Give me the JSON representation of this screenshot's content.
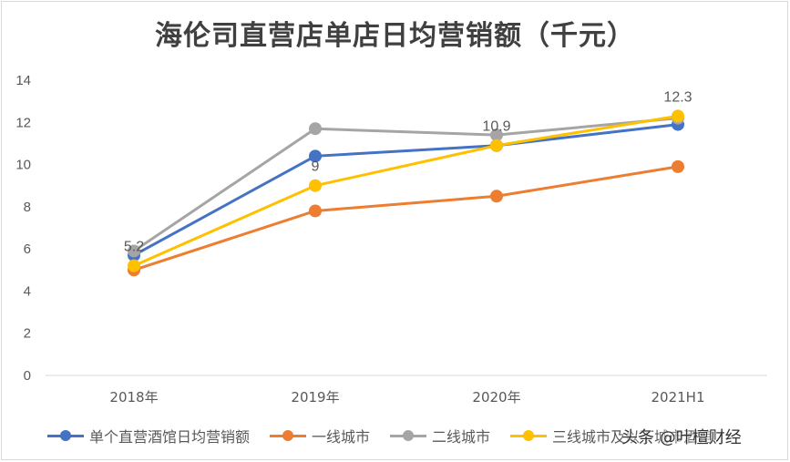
{
  "chart_data": {
    "type": "line",
    "title": "海伦司直营店单店日均营销额（千元）",
    "categories": [
      "2018年",
      "2019年",
      "2020年",
      "2021H1"
    ],
    "y_ticks": [
      "0",
      "2",
      "4",
      "6",
      "8",
      "10",
      "12",
      "14"
    ],
    "ylim": [
      0,
      14
    ],
    "grid": false,
    "legend_position": "bottom",
    "series": [
      {
        "name": "单个直营酒馆日均营销额",
        "color": "#4472c4",
        "values": [
          5.7,
          10.4,
          10.9,
          11.9
        ]
      },
      {
        "name": "一线城市",
        "color": "#ed7d31",
        "values": [
          5.0,
          7.8,
          8.5,
          9.9
        ]
      },
      {
        "name": "二线城市",
        "color": "#a5a5a5",
        "values": [
          5.9,
          11.7,
          11.4,
          12.2
        ]
      },
      {
        "name": "三线城市及以下城市酒馆",
        "color": "#ffc000",
        "values": [
          5.2,
          9.0,
          10.9,
          12.3
        ]
      }
    ],
    "data_labels": [
      {
        "text": "5.2",
        "series": 3,
        "index": 0
      },
      {
        "text": "9",
        "series": 3,
        "index": 1
      },
      {
        "text": "10.9",
        "series": 3,
        "index": 2
      },
      {
        "text": "12.3",
        "series": 3,
        "index": 3
      }
    ]
  },
  "watermark": "头条 @叶檀财经"
}
